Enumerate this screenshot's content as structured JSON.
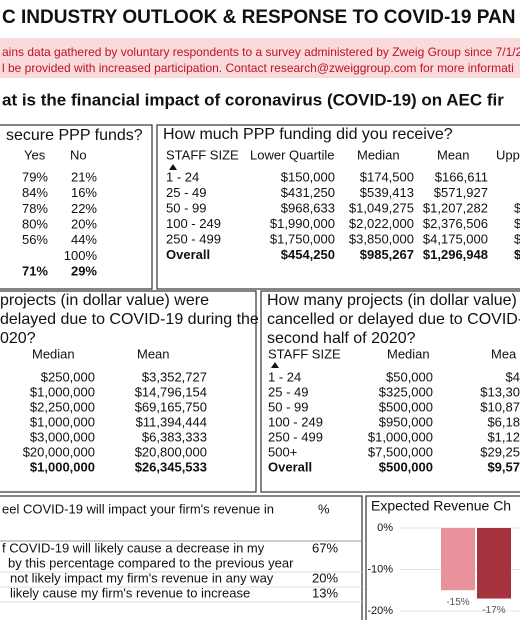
{
  "header": {
    "title": "C INDUSTRY OUTLOOK & RESPONSE TO COVID-19 PAN",
    "notice": [
      "ains data gathered by voluntary respondents to a survey administered by Zweig Group since 7/1/2",
      "l be provided with increased participation. Contact research@zweiggroup.com for more informati"
    ]
  },
  "section_title": "at is the financial impact of coronavirus (COVID-19) on AEC fir",
  "ppp_secured": {
    "title": "secure PPP funds?",
    "columns": [
      "Yes",
      "No"
    ],
    "rows": [
      [
        "79%",
        "21%"
      ],
      [
        "84%",
        "16%"
      ],
      [
        "78%",
        "22%"
      ],
      [
        "80%",
        "20%"
      ],
      [
        "56%",
        "44%"
      ],
      [
        null,
        "100%"
      ],
      [
        "71%",
        "29%"
      ]
    ]
  },
  "ppp_funding": {
    "title": "How much PPP funding did you receive?",
    "columns": [
      "STAFF SIZE",
      "Lower Quartile",
      "Median",
      "Mean",
      "Upp"
    ],
    "rows": [
      [
        "1 - 24",
        "$150,000",
        "$174,500",
        "$166,611",
        null
      ],
      [
        "25 - 49",
        "$431,250",
        "$539,413",
        "$571,927",
        null
      ],
      [
        "50 - 99",
        "$968,633",
        "$1,049,275",
        "$1,207,282",
        "$"
      ],
      [
        "100 - 249",
        "$1,990,000",
        "$2,022,000",
        "$2,376,506",
        "$"
      ],
      [
        "250 - 499",
        "$1,750,000",
        "$3,850,000",
        "$4,175,000",
        "$"
      ],
      [
        "Overall",
        "$454,250",
        "$985,267",
        "$1,296,948",
        "$"
      ]
    ]
  },
  "projects_first_half": {
    "title_lines": [
      "projects (in dollar value) were",
      "delayed due to COVID-19 during the",
      "020?"
    ],
    "columns": [
      "Median",
      "Mean"
    ],
    "rows": [
      [
        "$250,000",
        "$3,352,727"
      ],
      [
        "$1,000,000",
        "$14,796,154"
      ],
      [
        "$2,250,000",
        "$69,165,750"
      ],
      [
        "$1,000,000",
        "$11,394,444"
      ],
      [
        "$3,000,000",
        "$6,383,333"
      ],
      [
        "$20,000,000",
        "$20,800,000"
      ],
      [
        "$1,000,000",
        "$26,345,533"
      ]
    ]
  },
  "projects_second_half": {
    "title_lines": [
      "How many projects (in dollar value) w",
      "cancelled or delayed due to COVID-1",
      "second half of 2020?"
    ],
    "columns": [
      "STAFF SIZE",
      "Median",
      "Mea"
    ],
    "rows": [
      [
        "1 - 24",
        "$50,000",
        "$4"
      ],
      [
        "25 - 49",
        "$325,000",
        "$13,30"
      ],
      [
        "50 - 99",
        "$500,000",
        "$10,87"
      ],
      [
        "100 - 249",
        "$950,000",
        "$6,18"
      ],
      [
        "250 - 499",
        "$1,000,000",
        "$1,12"
      ],
      [
        "500+",
        "$7,500,000",
        "$29,25"
      ],
      [
        "Overall",
        "$500,000",
        "$9,57"
      ]
    ]
  },
  "revenue_impact": {
    "title": "eel COVID-19 will impact your firm's revenue in",
    "column": "%",
    "rows": [
      [
        "f COVID-19 will likely cause a decrease in my",
        "67%"
      ],
      [
        "by this percentage compared to the previous year",
        null
      ],
      [
        "not likely impact my firm's revenue in any way",
        "20%"
      ],
      [
        "likely cause my firm's revenue to increase",
        "13%"
      ]
    ]
  },
  "chart_data": {
    "type": "bar",
    "title": "Expected Revenue Ch",
    "categories": [
      null,
      null
    ],
    "values": [
      -15,
      -17
    ],
    "value_labels": [
      "-15%",
      "-17%"
    ],
    "colors": [
      "#e8939b",
      "#a6323e"
    ],
    "ylim": [
      -20,
      0
    ],
    "yticks": [
      {
        "value": 0,
        "label": "0%"
      },
      {
        "value": -10,
        "label": "-10%"
      },
      {
        "value": -20,
        "label": "-20%"
      }
    ],
    "grid": true
  }
}
